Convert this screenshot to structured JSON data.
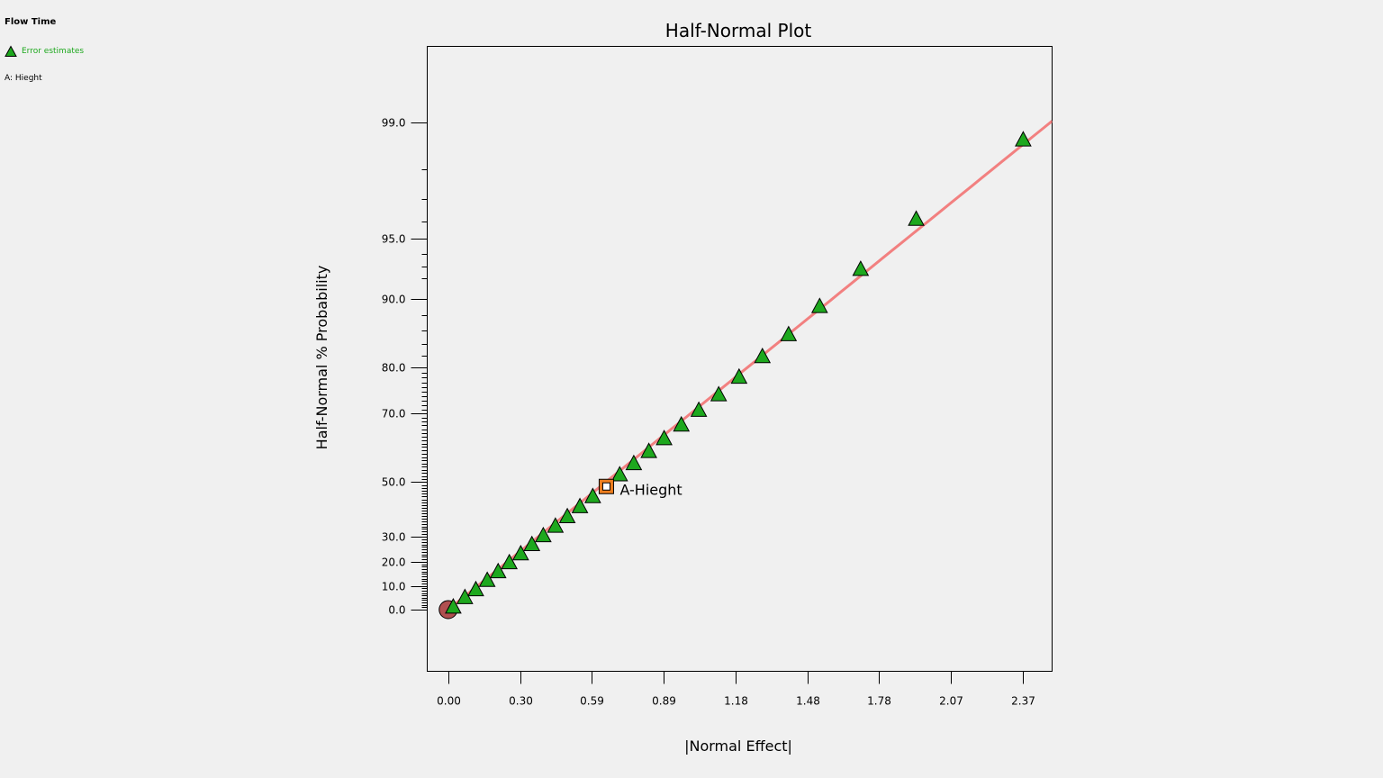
{
  "legend": {
    "title": "Flow Time",
    "items": [
      {
        "label": "Error estimates",
        "color": "#1ea81e",
        "marker": "triangle-icon"
      }
    ],
    "factor": "A: Hieght"
  },
  "chart_data": {
    "type": "scatter",
    "title": "Half-Normal Plot",
    "xlabel": "|Normal Effect|",
    "ylabel": "Half-Normal % Probability",
    "xlim": [
      -0.0863,
      2.4891
    ],
    "x_ticks": [
      "0.00",
      "0.30",
      "0.59",
      "0.89",
      "1.18",
      "1.48",
      "1.78",
      "2.07",
      "2.37"
    ],
    "x_tick_values": [
      0.0,
      0.296,
      0.592,
      0.888,
      1.184,
      1.48,
      1.776,
      2.072,
      2.368
    ],
    "y_ticks": [
      "0.0",
      "10.0",
      "20.0",
      "30.0",
      "50.0",
      "70.0",
      "80.0",
      "90.0",
      "95.0",
      "99.0"
    ],
    "y_tick_values": [
      0.0,
      10.0,
      20.0,
      30.0,
      50.0,
      70.0,
      80.0,
      90.0,
      95.0,
      99.0
    ],
    "y_scale": "half-normal probability",
    "grid": false,
    "colors": {
      "error_estimate": "#1ea81e",
      "factor": "#ee7e1e",
      "line": "#f28080",
      "origin": "#b05050"
    },
    "series": [
      {
        "name": "Error estimates",
        "marker": "triangle",
        "points": [
          {
            "x": 0.021,
            "y": 1.1
          },
          {
            "x": 0.069,
            "y": 5.1
          },
          {
            "x": 0.114,
            "y": 8.4
          },
          {
            "x": 0.161,
            "y": 12.3
          },
          {
            "x": 0.206,
            "y": 15.9
          },
          {
            "x": 0.252,
            "y": 19.6
          },
          {
            "x": 0.299,
            "y": 23.2
          },
          {
            "x": 0.345,
            "y": 26.9
          },
          {
            "x": 0.392,
            "y": 30.4
          },
          {
            "x": 0.442,
            "y": 34.1
          },
          {
            "x": 0.491,
            "y": 37.7
          },
          {
            "x": 0.543,
            "y": 41.4
          },
          {
            "x": 0.596,
            "y": 45.0
          },
          {
            "x": 0.707,
            "y": 52.4
          },
          {
            "x": 0.765,
            "y": 56.0
          },
          {
            "x": 0.827,
            "y": 59.7
          },
          {
            "x": 0.89,
            "y": 63.4
          },
          {
            "x": 0.961,
            "y": 67.1
          },
          {
            "x": 1.033,
            "y": 70.8
          },
          {
            "x": 1.115,
            "y": 74.4
          },
          {
            "x": 1.199,
            "y": 78.1
          },
          {
            "x": 1.295,
            "y": 81.9
          },
          {
            "x": 1.403,
            "y": 85.4
          },
          {
            "x": 1.531,
            "y": 89.1
          },
          {
            "x": 1.7,
            "y": 92.8
          },
          {
            "x": 1.929,
            "y": 96.1
          },
          {
            "x": 2.37,
            "y": 98.7
          }
        ]
      },
      {
        "name": "A-Hieght",
        "marker": "square",
        "points": [
          {
            "x": 0.652,
            "y": 48.5
          }
        ]
      }
    ],
    "origin_point": {
      "x": 0.0,
      "y": 0.0
    },
    "fit_line": {
      "x": [
        0.0,
        2.4891
      ],
      "slope_per_z": 0.9635
    }
  }
}
